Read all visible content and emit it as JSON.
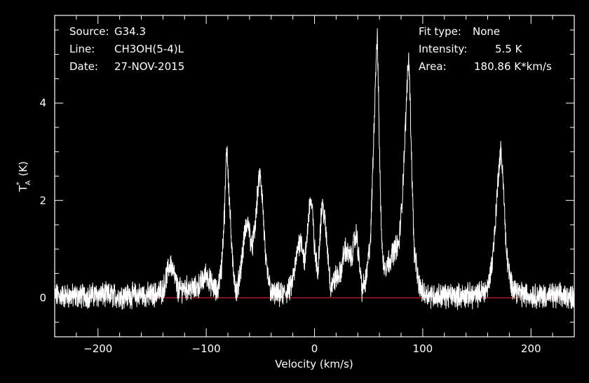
{
  "header": {
    "left": [
      {
        "label": "Source:",
        "value": "G34.3"
      },
      {
        "label": "Line:",
        "value": "CH3OH(5-4)L"
      },
      {
        "label": "Date:",
        "value": "27-NOV-2015"
      }
    ],
    "right": [
      {
        "label": "Fit type:",
        "value": "None"
      },
      {
        "label": "Intensity:",
        "value": "5.5 K"
      },
      {
        "label": "Area:",
        "value": "180.86 K*km/s"
      }
    ]
  },
  "colors": {
    "background": "#000000",
    "spectrum": "#ffffff",
    "baseline": "#cc2222",
    "frame": "#ffffff"
  },
  "chart_data": {
    "type": "line",
    "title": "",
    "xlabel": "Velocity (km/s)",
    "ylabel_main": "T",
    "ylabel_sup": "*",
    "ylabel_sub": "A",
    "ylabel_unit": "(K)",
    "xlim": [
      -240,
      240
    ],
    "ylim": [
      -0.8,
      5.8
    ],
    "xticks": [
      -200,
      -100,
      0,
      100,
      200
    ],
    "yticks": [
      0,
      2,
      4
    ],
    "xtick_labels": [
      "−200",
      "−100",
      "0",
      "100",
      "200"
    ],
    "ytick_labels": [
      "0",
      "2",
      "4"
    ],
    "baseline_y": 0,
    "grid": false,
    "series": [
      {
        "x": [
          -240,
          -220,
          -200,
          -180,
          -160,
          -150,
          -140,
          -136,
          -133,
          -130,
          -126,
          -120,
          -110,
          -103,
          -100,
          -97,
          -90,
          -86,
          -83,
          -81,
          -79,
          -76,
          -72,
          -67,
          -64,
          -61,
          -58,
          -55,
          -52,
          -50,
          -48,
          -45,
          -40,
          -30,
          -22,
          -18,
          -15,
          -12,
          -9,
          -6,
          -4,
          -2,
          0,
          3,
          5,
          7,
          9,
          12,
          15,
          19,
          24,
          28,
          31,
          34,
          37,
          39,
          41,
          44,
          48,
          52,
          55,
          57,
          58,
          59,
          61,
          63,
          66,
          70,
          74,
          78,
          81,
          84,
          86,
          87,
          88,
          90,
          92,
          96,
          100,
          110,
          130,
          150,
          160,
          164,
          167,
          170,
          172,
          174,
          177,
          181,
          190,
          200,
          220,
          240
        ],
        "y": [
          0.05,
          0.03,
          0.06,
          0.04,
          0.06,
          0.05,
          0.15,
          0.5,
          0.72,
          0.5,
          0.15,
          0.2,
          0.18,
          0.35,
          0.5,
          0.35,
          0.1,
          0.6,
          1.8,
          3.2,
          2.2,
          0.8,
          0.05,
          0.8,
          1.4,
          1.55,
          1.0,
          1.4,
          2.3,
          2.55,
          2.0,
          0.7,
          0.08,
          0.05,
          0.2,
          0.6,
          1.1,
          1.2,
          0.7,
          1.5,
          2.05,
          1.8,
          1.0,
          0.5,
          1.3,
          1.95,
          1.7,
          1.0,
          0.2,
          0.4,
          0.5,
          1.0,
          0.9,
          0.8,
          1.2,
          1.3,
          0.8,
          0.15,
          0.4,
          1.3,
          3.5,
          5.0,
          5.4,
          4.3,
          2.0,
          0.75,
          0.65,
          0.8,
          1.0,
          1.1,
          2.0,
          3.5,
          4.6,
          4.95,
          4.4,
          2.6,
          1.0,
          0.3,
          0.1,
          0.05,
          0.04,
          0.05,
          0.2,
          0.7,
          1.5,
          2.6,
          3.0,
          2.6,
          1.0,
          0.3,
          0.08,
          0.05,
          0.04,
          0.03
        ]
      }
    ]
  }
}
